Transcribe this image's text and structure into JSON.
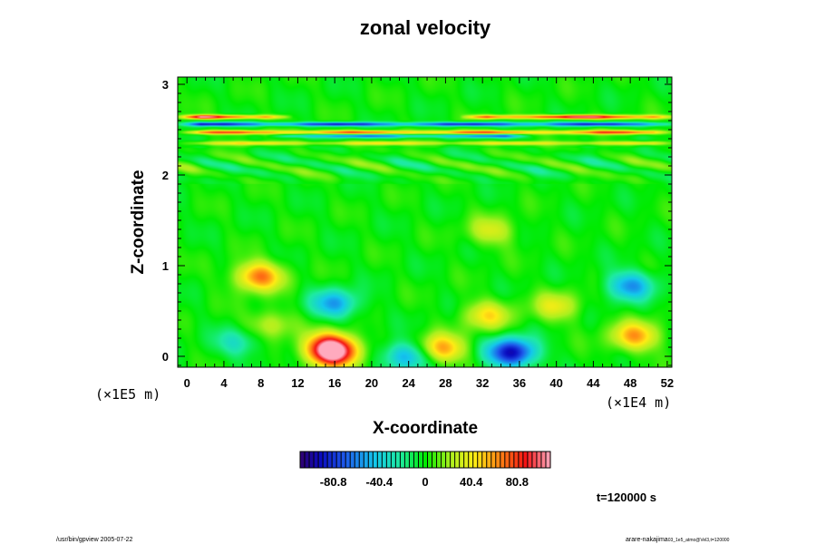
{
  "chart_data": {
    "type": "heatmap",
    "title": "zonal velocity",
    "xlabel": "X-coordinate",
    "ylabel": "Z-coordinate",
    "x_ticks": [
      "0",
      "4",
      "8",
      "12",
      "16",
      "20",
      "24",
      "28",
      "32",
      "36",
      "40",
      "44",
      "48",
      "52"
    ],
    "y_ticks": [
      "0",
      "1",
      "2",
      "3"
    ],
    "xlim": [
      -1,
      52.5
    ],
    "ylim": [
      -0.12,
      3.08
    ],
    "x_scale_label": "(×1E4 m)",
    "y_scale_label": "(×1E5 m)",
    "colorbar": {
      "range": [
        -110,
        110
      ],
      "ticks": [
        "-80.8",
        "-40.4",
        "0",
        "40.4",
        "80.8"
      ],
      "tick_values": [
        -80.8,
        -40.4,
        0,
        40.4,
        80.8
      ]
    },
    "time_label": "t=120000 s",
    "features": [
      {
        "x": 15.8,
        "z": 0.04,
        "value": 100
      },
      {
        "x": 15.5,
        "z": 0.12,
        "value": 55
      },
      {
        "x": 27.5,
        "z": 0.08,
        "value": 60
      },
      {
        "x": 35.2,
        "z": 0.04,
        "value": -95
      },
      {
        "x": 23.8,
        "z": 0.0,
        "value": -55
      },
      {
        "x": 7.8,
        "z": 0.88,
        "value": 68
      },
      {
        "x": 16.0,
        "z": 0.58,
        "value": -52
      },
      {
        "x": 48.0,
        "z": 0.78,
        "value": -55
      },
      {
        "x": 48.5,
        "z": 0.22,
        "value": 58
      },
      {
        "x": 32.5,
        "z": 0.45,
        "value": 42
      },
      {
        "x": 5.5,
        "z": 0.15,
        "value": -30
      },
      {
        "x": 33.0,
        "z": 1.38,
        "value": 32
      },
      {
        "x": 9.0,
        "z": 0.35,
        "value": 30
      },
      {
        "x": 40.0,
        "z": 0.55,
        "value": 35
      }
    ],
    "bands": [
      {
        "z": 2.64,
        "x_from": 0,
        "x_to": 10,
        "value": 110
      },
      {
        "z": 2.64,
        "x_from": 31,
        "x_to": 52,
        "value": 105
      },
      {
        "z": 2.56,
        "x_from": 0,
        "x_to": 52,
        "value": -90
      },
      {
        "z": 2.47,
        "x_from": 0,
        "x_to": 52,
        "value": 80
      },
      {
        "z": 2.43,
        "x_from": 10,
        "x_to": 36,
        "value": -65
      },
      {
        "z": 2.35,
        "x_from": 0,
        "x_to": 52,
        "value": 45
      }
    ]
  },
  "footer": {
    "left": "/usr/bin/gpview 2005-07-22",
    "right_main": "arare-nakajima",
    "right_sub": "03_1e5_atmo@Vel3,t=120000"
  }
}
